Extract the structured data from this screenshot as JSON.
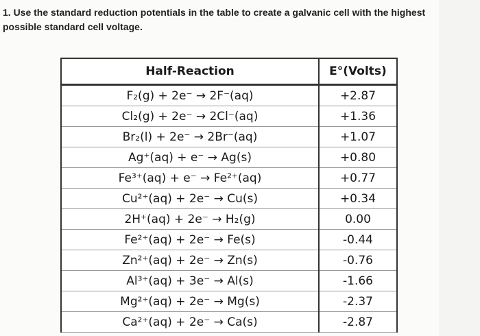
{
  "question": {
    "lines": [
      "1. Use the standard reduction potentials in the table to create a galvanic cell with the highest",
      "possible standard cell voltage."
    ]
  },
  "table": {
    "header": [
      "Half-Reaction",
      "E°(Volts)"
    ],
    "rows": [
      [
        "F₂(g) + 2e⁻ → 2F⁻(aq)",
        "+2.87"
      ],
      [
        "Cl₂(g) + 2e⁻ → 2Cl⁻(aq)",
        "+1.36"
      ],
      [
        "Br₂(l) + 2e⁻ → 2Br⁻(aq)",
        "+1.07"
      ],
      [
        "Ag⁺(aq) + e⁻ → Ag(s)",
        "+0.80"
      ],
      [
        "Fe³⁺(aq) + e⁻ → Fe²⁺(aq)",
        "+0.77"
      ],
      [
        "Cu²⁺(aq) + 2e⁻ → Cu(s)",
        "+0.34"
      ],
      [
        "2H⁺(aq) + 2e⁻ → H₂(g)",
        "0.00"
      ],
      [
        "Fe²⁺(aq) + 2e⁻ → Fe(s)",
        "-0.44"
      ],
      [
        "Zn²⁺(aq) + 2e⁻ → Zn(s)",
        "-0.76"
      ],
      [
        "Al³⁺(aq) + 3e⁻ → Al(s)",
        "-1.66"
      ],
      [
        "Mg²⁺(aq) + 2e⁻ → Mg(s)",
        "-2.37"
      ],
      [
        "Ca²⁺(aq) + 2e⁻ → Ca(s)",
        "-2.87"
      ]
    ]
  }
}
